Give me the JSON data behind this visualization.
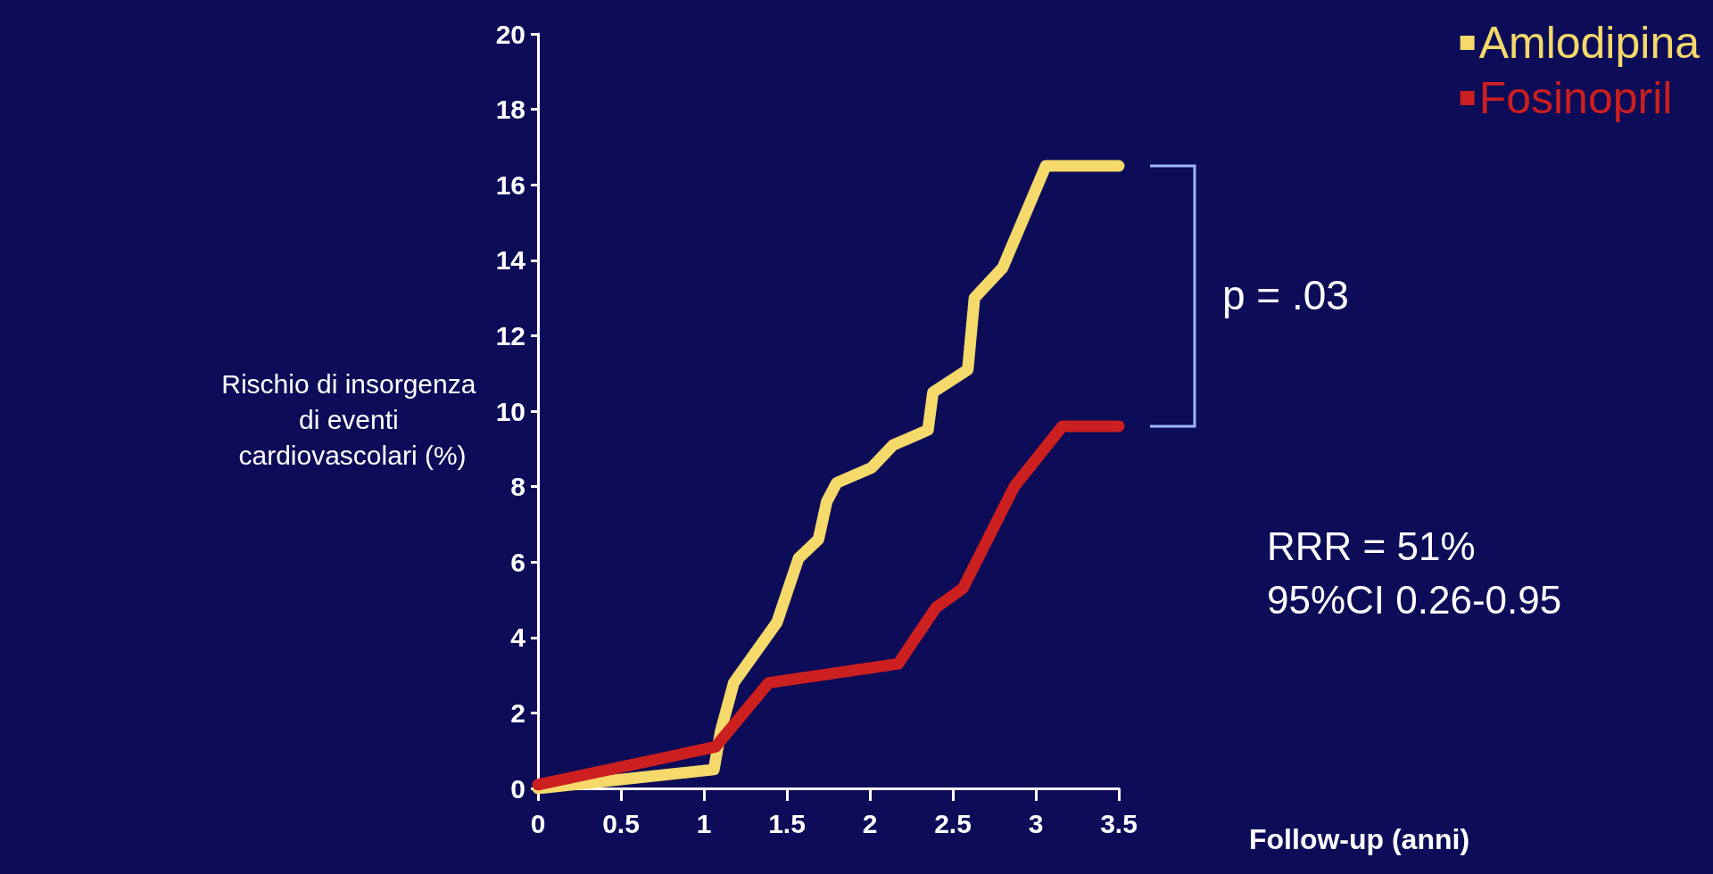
{
  "chart_data": {
    "type": "line",
    "xlabel": "Follow-up (anni)",
    "ylabel": "Rischio di insorgenza di eventi cardiovascolari (%)",
    "xlim": [
      0,
      3.5
    ],
    "xticks": [
      0,
      0.5,
      1,
      1.5,
      2,
      2.5,
      3,
      3.5
    ],
    "ylim": [
      0,
      20
    ],
    "yticks": [
      0,
      2,
      4,
      6,
      8,
      10,
      12,
      14,
      16,
      18,
      20
    ],
    "grid": false,
    "legend": "top right",
    "marker": "none",
    "line_style": "solid",
    "series": [
      {
        "name": "Amlodipina",
        "color": "#f5d96a",
        "x": [
          0,
          1.06,
          1.1,
          1.18,
          1.44,
          1.57,
          1.69,
          1.74,
          1.8,
          2.01,
          2.14,
          2.35,
          2.38,
          2.59,
          2.63,
          2.8,
          3.06,
          3.5
        ],
        "values": [
          0,
          0.5,
          1.5,
          2.8,
          4.4,
          6.1,
          6.6,
          7.6,
          8.1,
          8.5,
          9.1,
          9.5,
          10.5,
          11.1,
          13,
          13.8,
          16.5,
          16.5
        ]
      },
      {
        "name": "Fosinopril",
        "color": "#cc1f1f",
        "x": [
          0,
          1.07,
          1.39,
          2.17,
          2.4,
          2.56,
          2.87,
          3.16,
          3.5
        ],
        "values": [
          0.1,
          1.1,
          2.8,
          3.3,
          4.8,
          5.3,
          8,
          9.6,
          9.6
        ]
      }
    ],
    "annotations": [
      "p = .03",
      "RRR = 51%",
      "95%CI 0.26-0.95"
    ]
  }
}
